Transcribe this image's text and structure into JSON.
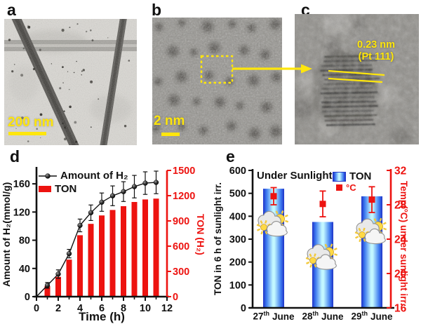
{
  "panels": {
    "a": {
      "label": "a",
      "scale_bar": "200 nm"
    },
    "b": {
      "label": "b",
      "scale_bar": "2 nm"
    },
    "c": {
      "label": "c",
      "annotation": {
        "line1": "0.23 nm",
        "line2": "(Pt 111)"
      }
    },
    "d": {
      "label": "d"
    },
    "e": {
      "label": "e"
    }
  },
  "colors": {
    "accent_red": "#ed1310",
    "annotation_yellow": "#ffe60c",
    "bar_blue_edge": "#1e32c8",
    "bar_blue_center": "#c2f7ff",
    "text_black": "#111111"
  },
  "chart_data": [
    {
      "id": "d",
      "type": "bar+line",
      "x": [
        1,
        2,
        3,
        4,
        5,
        6,
        7,
        8,
        9,
        10,
        11
      ],
      "xlim": [
        0,
        12
      ],
      "x_ticks": [
        0,
        2,
        4,
        6,
        8,
        10,
        12
      ],
      "x_minor_ticks": [
        1,
        3,
        5,
        7,
        9,
        11
      ],
      "xlabel": "Time (h)",
      "left_axis": {
        "label": "Amount of H₂(mmol/g)",
        "ticks": [
          0,
          40,
          80,
          120,
          160
        ],
        "range": [
          0,
          182
        ],
        "color": "#111111"
      },
      "right_axis": {
        "label": "TON (H₂)",
        "ticks": [
          0,
          300,
          600,
          900,
          1200,
          1500
        ],
        "range": [
          0,
          1500
        ],
        "color": "#ed1310"
      },
      "series": [
        {
          "name": "Amount of H₂",
          "type": "line",
          "axis": "left",
          "color": "#111111",
          "values": [
            16,
            32,
            61,
            101,
            119,
            134,
            143,
            149,
            156,
            161,
            162
          ],
          "errors": [
            4,
            6,
            6,
            9,
            11,
            13,
            14,
            14,
            16,
            16,
            16
          ]
        },
        {
          "name": "TON",
          "type": "bar",
          "axis": "right",
          "color": "#ed1310",
          "values": [
            125,
            235,
            440,
            730,
            865,
            965,
            1030,
            1075,
            1125,
            1155,
            1165
          ]
        }
      ],
      "grid": false,
      "legend_position": "top-left"
    },
    {
      "id": "e",
      "type": "bar+scatter",
      "title": "Under Sunlight",
      "categories": [
        {
          "day": "27",
          "suffix": "th",
          "month": "June"
        },
        {
          "day": "28",
          "suffix": "th",
          "month": "June"
        },
        {
          "day": "29",
          "suffix": "th",
          "month": "June"
        }
      ],
      "left_axis": {
        "label": "TON in 6 h of sunlight irr.",
        "ticks": [
          0,
          100,
          200,
          300,
          400,
          500,
          600
        ],
        "range": [
          0,
          600
        ],
        "color": "#111111"
      },
      "right_axis": {
        "label": "Temp(°C) under sunlight irr.",
        "ticks": [
          16,
          20,
          24,
          28,
          32
        ],
        "range": [
          16,
          32
        ],
        "color": "#ed1310"
      },
      "series": [
        {
          "name": "TON",
          "type": "bar",
          "axis": "left",
          "values": [
            520,
            375,
            487
          ],
          "color_gradient": [
            "#1e32c8",
            "#c2f7ff"
          ]
        },
        {
          "name": "°C",
          "type": "scatter",
          "marker": "square",
          "axis": "right",
          "color": "#ed1310",
          "values": [
            29.0,
            28.1,
            28.6
          ],
          "errors": [
            1.0,
            1.5,
            1.5
          ]
        }
      ],
      "weather_icon": "sun-behind-clouds",
      "grid": false,
      "legend_position": "top"
    }
  ]
}
